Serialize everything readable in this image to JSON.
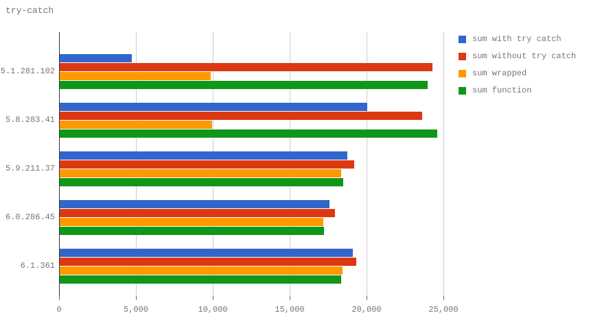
{
  "title": "try-catch",
  "colors": {
    "series_blue": "#3366CC",
    "series_red": "#DC3912",
    "series_orange": "#FF9900",
    "series_green": "#109618",
    "gridline": "#CCCCCC",
    "zero_axis": "#333333",
    "text": "#757575"
  },
  "chart_data": {
    "type": "bar",
    "orientation": "horizontal",
    "title": "try-catch",
    "categories": [
      "5.1.281.102",
      "5.8.283.41",
      "5.9.211.37",
      "6.0.286.45",
      "6.1.361"
    ],
    "series": [
      {
        "name": "sum with try catch",
        "color": "#3366CC",
        "values": [
          4700,
          20000,
          18700,
          17550,
          19050
        ]
      },
      {
        "name": "sum without try catch",
        "color": "#DC3912",
        "values": [
          24250,
          23550,
          19150,
          17900,
          19300
        ]
      },
      {
        "name": "sum wrapped",
        "color": "#FF9900",
        "values": [
          9800,
          9900,
          18300,
          17150,
          18400
        ]
      },
      {
        "name": "sum function",
        "color": "#109618",
        "values": [
          23950,
          24550,
          18450,
          17200,
          18300
        ]
      }
    ],
    "xlim": [
      0,
      25000
    ],
    "x_ticks": [
      "0",
      "5,000",
      "10,000",
      "15,000",
      "20,000",
      "25,000"
    ],
    "x_tick_values": [
      0,
      5000,
      10000,
      15000,
      20000,
      25000
    ],
    "xlabel": "",
    "ylabel": "",
    "grid": true,
    "legend_position": "right"
  }
}
